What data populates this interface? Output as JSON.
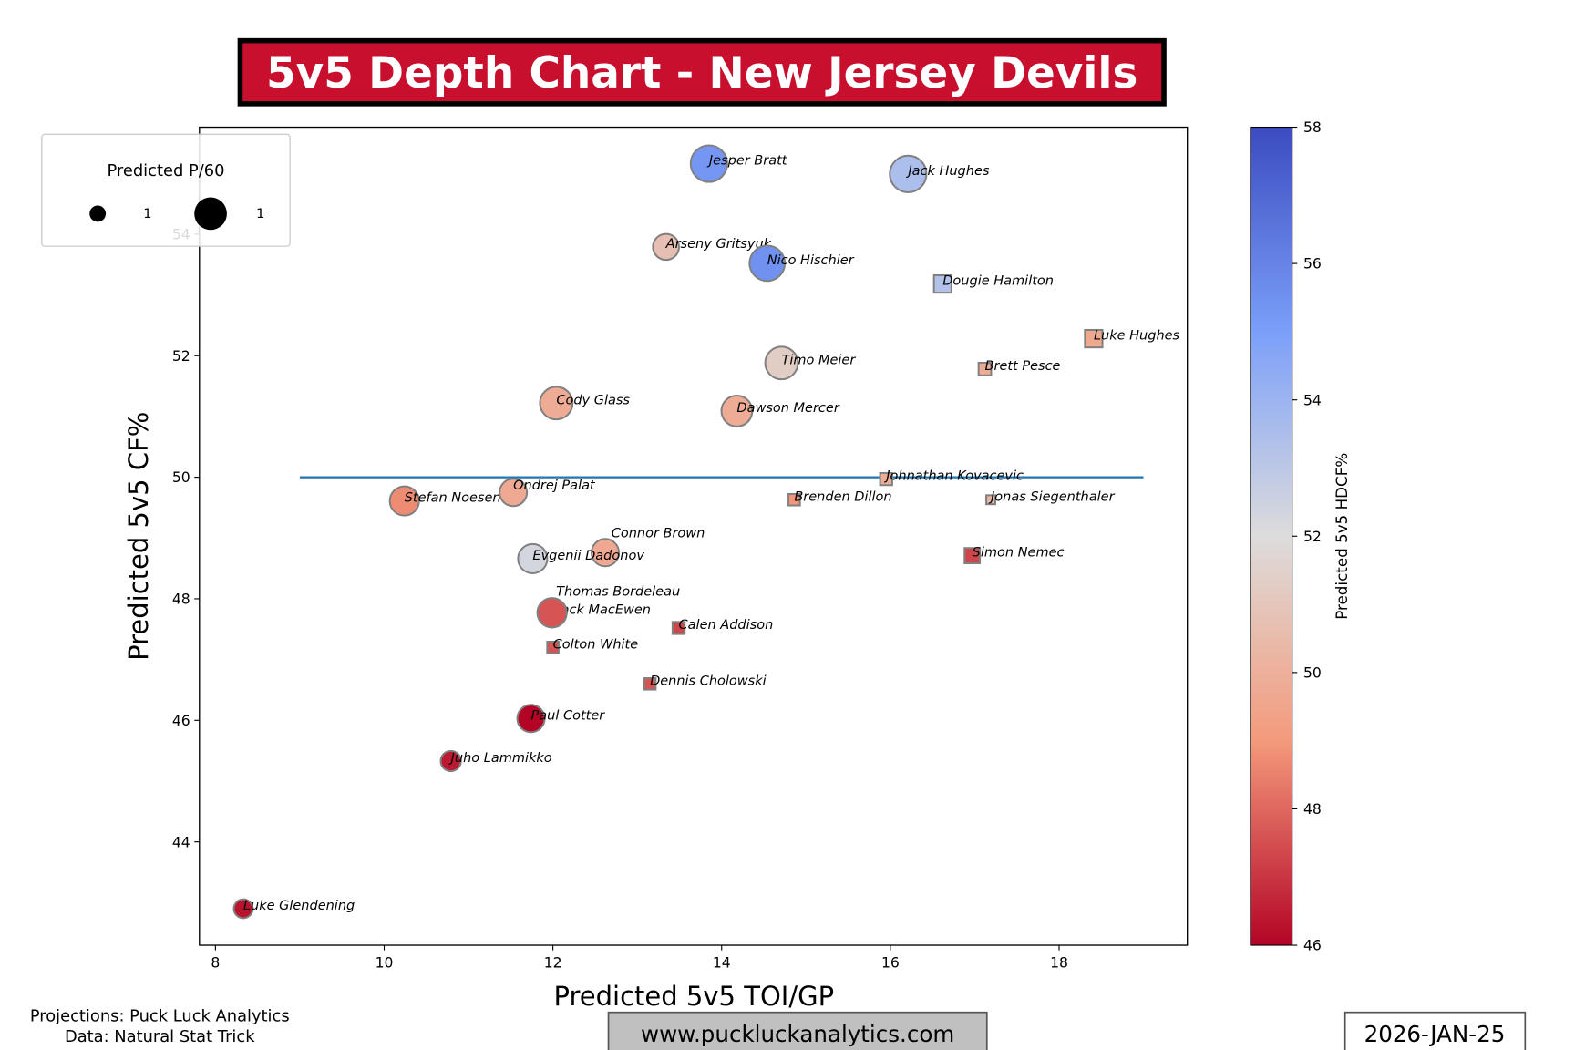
{
  "chart_data": {
    "type": "scatter",
    "title": "5v5 Depth Chart - New Jersey Devils",
    "xlabel": "Predicted 5v5 TOI/GP",
    "ylabel": "Predicted 5v5 CF%",
    "xlim": [
      7.81,
      19.52
    ],
    "ylim": [
      42.3,
      55.76
    ],
    "xticks": [
      8,
      10,
      12,
      14,
      16,
      18
    ],
    "yticks": [
      44,
      46,
      48,
      50,
      52,
      54
    ],
    "reference_line": {
      "y": 50,
      "x_from": 9,
      "x_to": 19,
      "color": "#1f77b4"
    },
    "colorbar": {
      "label": "Predicted 5v5 HDCF%",
      "range": [
        46,
        58
      ],
      "ticks": [
        46,
        48,
        50,
        52,
        54,
        56,
        58
      ],
      "colormap": "coolwarm_r"
    },
    "size_legend": {
      "title": "Predicted P/60",
      "entries": [
        "1",
        "1"
      ]
    },
    "legend_placement": "top-left",
    "points": [
      {
        "name": "Jesper Bratt",
        "toi": 13.85,
        "cf": 55.16,
        "hdcf": 55.3,
        "shape": "circle",
        "size": 1.0
      },
      {
        "name": "Jack Hughes",
        "toi": 16.21,
        "cf": 54.99,
        "hdcf": 53.5,
        "shape": "circle",
        "size": 1.0
      },
      {
        "name": "Arseny Gritsyuk",
        "toi": 13.34,
        "cf": 53.79,
        "hdcf": 50.7,
        "shape": "circle",
        "size": 0.6
      },
      {
        "name": "Nico Hischier",
        "toi": 14.54,
        "cf": 53.52,
        "hdcf": 55.5,
        "shape": "circle",
        "size": 0.95
      },
      {
        "name": "Dougie Hamilton",
        "toi": 16.62,
        "cf": 53.18,
        "hdcf": 53.3,
        "shape": "square",
        "size": 0.6
      },
      {
        "name": "Luke Hughes",
        "toi": 18.41,
        "cf": 52.28,
        "hdcf": 49.6,
        "shape": "square",
        "size": 0.6
      },
      {
        "name": "Timo Meier",
        "toi": 14.71,
        "cf": 51.88,
        "hdcf": 51.3,
        "shape": "circle",
        "size": 0.85
      },
      {
        "name": "Brett Pesce",
        "toi": 17.12,
        "cf": 51.78,
        "hdcf": 49.8,
        "shape": "square",
        "size": 0.38
      },
      {
        "name": "Cody Glass",
        "toi": 12.04,
        "cf": 51.22,
        "hdcf": 49.8,
        "shape": "circle",
        "size": 0.85
      },
      {
        "name": "Dawson Mercer",
        "toi": 14.18,
        "cf": 51.09,
        "hdcf": 49.8,
        "shape": "circle",
        "size": 0.78
      },
      {
        "name": "Johnathan Kovacevic",
        "toi": 15.95,
        "cf": 49.97,
        "hdcf": 49.9,
        "shape": "square",
        "size": 0.36
      },
      {
        "name": "Brenden Dillon",
        "toi": 14.86,
        "cf": 49.63,
        "hdcf": 48.9,
        "shape": "square",
        "size": 0.33
      },
      {
        "name": "Jonas Siegenthaler",
        "toi": 17.19,
        "cf": 49.63,
        "hdcf": 50.3,
        "shape": "square",
        "size": 0.22
      },
      {
        "name": "Stefan Noesen",
        "toi": 10.24,
        "cf": 49.61,
        "hdcf": 48.7,
        "shape": "circle",
        "size": 0.72
      },
      {
        "name": "Ondrej Palat",
        "toi": 11.53,
        "cf": 49.75,
        "hdcf": 49.7,
        "shape": "circle",
        "size": 0.65
      },
      {
        "name": "Connor Brown",
        "toi": 12.62,
        "cf": 48.76,
        "hdcf": 49.7,
        "shape": "circle",
        "size": 0.65
      },
      {
        "name": "Evgenii Dadonov",
        "toi": 11.76,
        "cf": 48.66,
        "hdcf": 52.3,
        "shape": "circle",
        "size": 0.72
      },
      {
        "name": "Simon Nemec",
        "toi": 16.97,
        "cf": 48.71,
        "hdcf": 47.3,
        "shape": "square",
        "size": 0.5
      },
      {
        "name": "Zack MacEwen",
        "toi": 11.99,
        "cf": 47.77,
        "hdcf": 47.6,
        "shape": "circle",
        "size": 0.72
      },
      {
        "name": "Thomas Bordeleau",
        "toi": 11.99,
        "cf": 47.77,
        "hdcf": 47.6,
        "shape": "circle",
        "size": 0.72
      },
      {
        "name": "Calen Addison",
        "toi": 13.49,
        "cf": 47.52,
        "hdcf": 47.3,
        "shape": "square",
        "size": 0.36
      },
      {
        "name": "Colton White",
        "toi": 12.0,
        "cf": 47.2,
        "hdcf": 47.6,
        "shape": "square",
        "size": 0.33
      },
      {
        "name": "Dennis Cholowski",
        "toi": 13.15,
        "cf": 46.6,
        "hdcf": 47.6,
        "shape": "square",
        "size": 0.33
      },
      {
        "name": "Paul Cotter",
        "toi": 11.74,
        "cf": 46.03,
        "hdcf": 46.0,
        "shape": "circle",
        "size": 0.65
      },
      {
        "name": "Juho Lammikko",
        "toi": 10.79,
        "cf": 45.33,
        "hdcf": 46.4,
        "shape": "circle",
        "size": 0.38
      },
      {
        "name": "Luke Glendening",
        "toi": 8.33,
        "cf": 42.9,
        "hdcf": 46.3,
        "shape": "circle",
        "size": 0.33
      }
    ]
  },
  "footer": {
    "projections": "Projections: Puck Luck Analytics",
    "data_source": "Data: Natural Stat Trick",
    "website": "www.puckluckanalytics.com",
    "date": "2026-JAN-25"
  },
  "colors": {
    "title_bg": "#c8102e",
    "line": "#1f77b4",
    "website_bg": "#c0c0c0"
  }
}
